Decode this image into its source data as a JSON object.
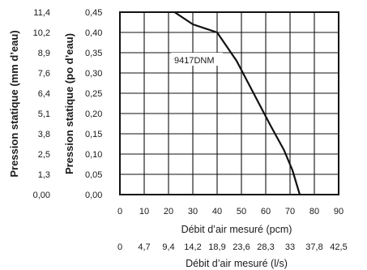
{
  "chart_data": {
    "type": "line",
    "x_axis_primary": {
      "label": "Débit d’air mesuré (pcm)",
      "ticks": [
        "0",
        "10",
        "20",
        "30",
        "40",
        "50",
        "60",
        "70",
        "80",
        "90"
      ],
      "range": [
        0,
        90
      ]
    },
    "x_axis_secondary": {
      "label": "Débit d’air mesuré (l/s)",
      "ticks": [
        "0",
        "4,7",
        "9,4",
        "14,2",
        "18,9",
        "23,6",
        "28,3",
        "33",
        "37,8",
        "42,5"
      ]
    },
    "y_axis_primary": {
      "label": "Pression statique (po d’eau)",
      "ticks": [
        "0,00",
        "0,05",
        "0,10",
        "0,15",
        "0,20",
        "0,25",
        "0,30",
        "0,35",
        "0,40",
        "0,45"
      ],
      "range": [
        0,
        0.45
      ]
    },
    "y_axis_secondary": {
      "label": "Pression statique (mm d’eau)",
      "ticks": [
        "0,00",
        "1,3",
        "2,5",
        "3,8",
        "5,1",
        "6,4",
        "7,6",
        "8,9",
        "10,2",
        "11,4"
      ]
    },
    "grid": true,
    "series": [
      {
        "name": "9417DNM",
        "x": [
          22.5,
          30,
          40,
          48,
          55,
          62,
          67.5,
          71,
          74
        ],
        "y": [
          0.45,
          0.42,
          0.4,
          0.33,
          0.25,
          0.17,
          0.11,
          0.06,
          0.0
        ]
      }
    ]
  }
}
